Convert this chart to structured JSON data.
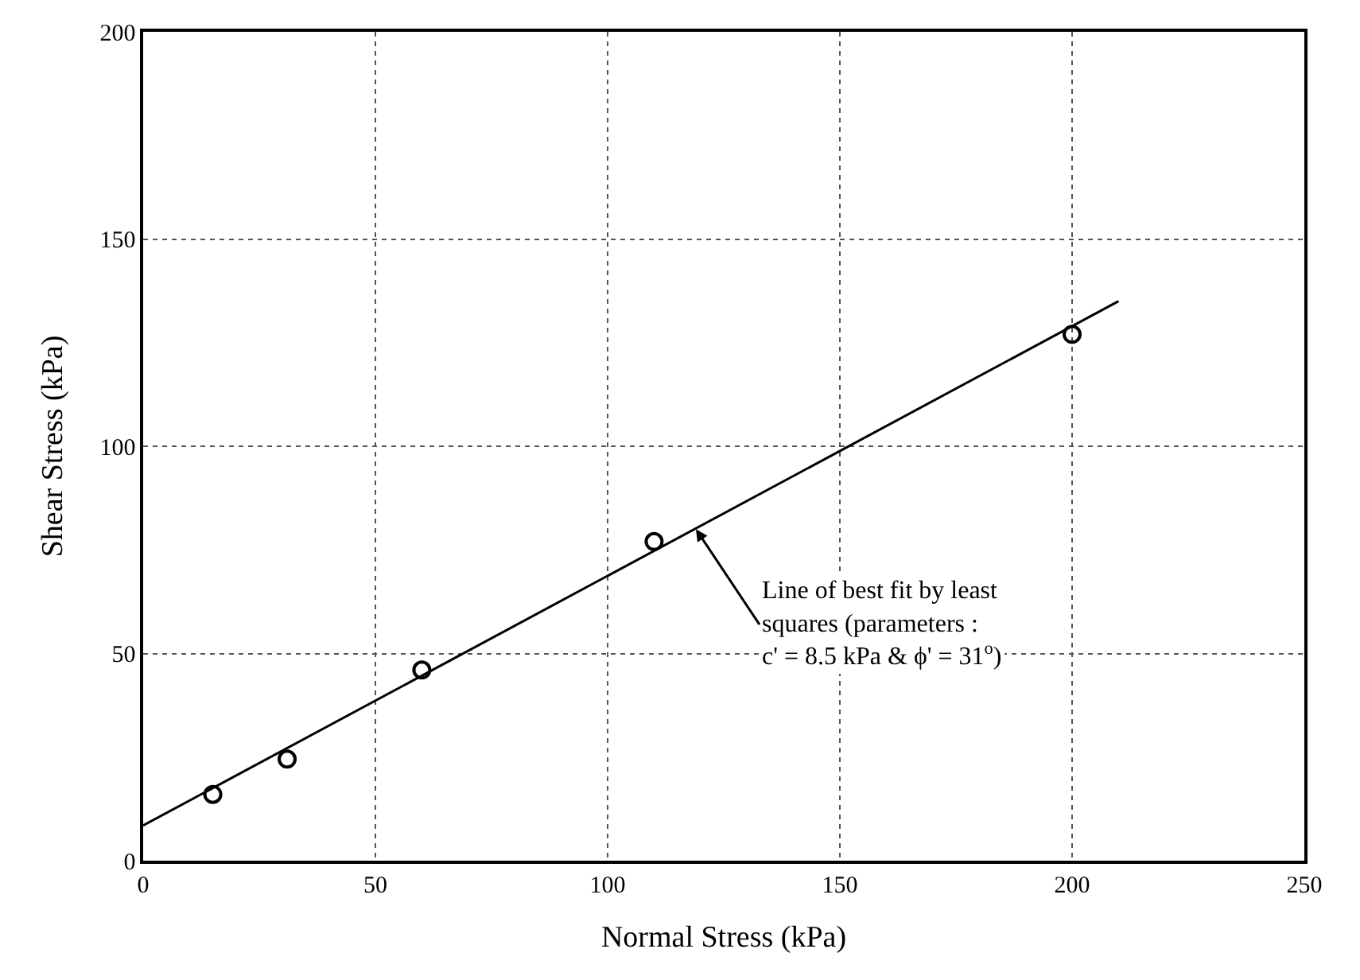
{
  "chart_data": {
    "type": "scatter",
    "xlabel": "Normal Stress (kPa)",
    "ylabel": "Shear Stress (kPa)",
    "xlim": [
      0,
      250
    ],
    "xticks": [
      0,
      50,
      100,
      150,
      200,
      250
    ],
    "ylim": [
      0,
      200
    ],
    "yticks": [
      0,
      50,
      100,
      150,
      200
    ],
    "grid": true,
    "marker": "circle",
    "series": [
      {
        "color": "#000000",
        "x": [
          15,
          31,
          60,
          110,
          200
        ],
        "values": [
          16,
          24.5,
          46,
          77,
          127
        ]
      },
      {
        "type": "line",
        "color": "#000000",
        "marker": "none",
        "x": [
          0,
          210
        ],
        "values": [
          8.5,
          135
        ]
      }
    ],
    "annotations": [
      {
        "text": "Line of best fit by least\nsquares (parameters :\nc' = 8.5 kPa & ϕ' = 31$^{o}$)",
        "x": 119,
        "y": 80
      }
    ]
  }
}
